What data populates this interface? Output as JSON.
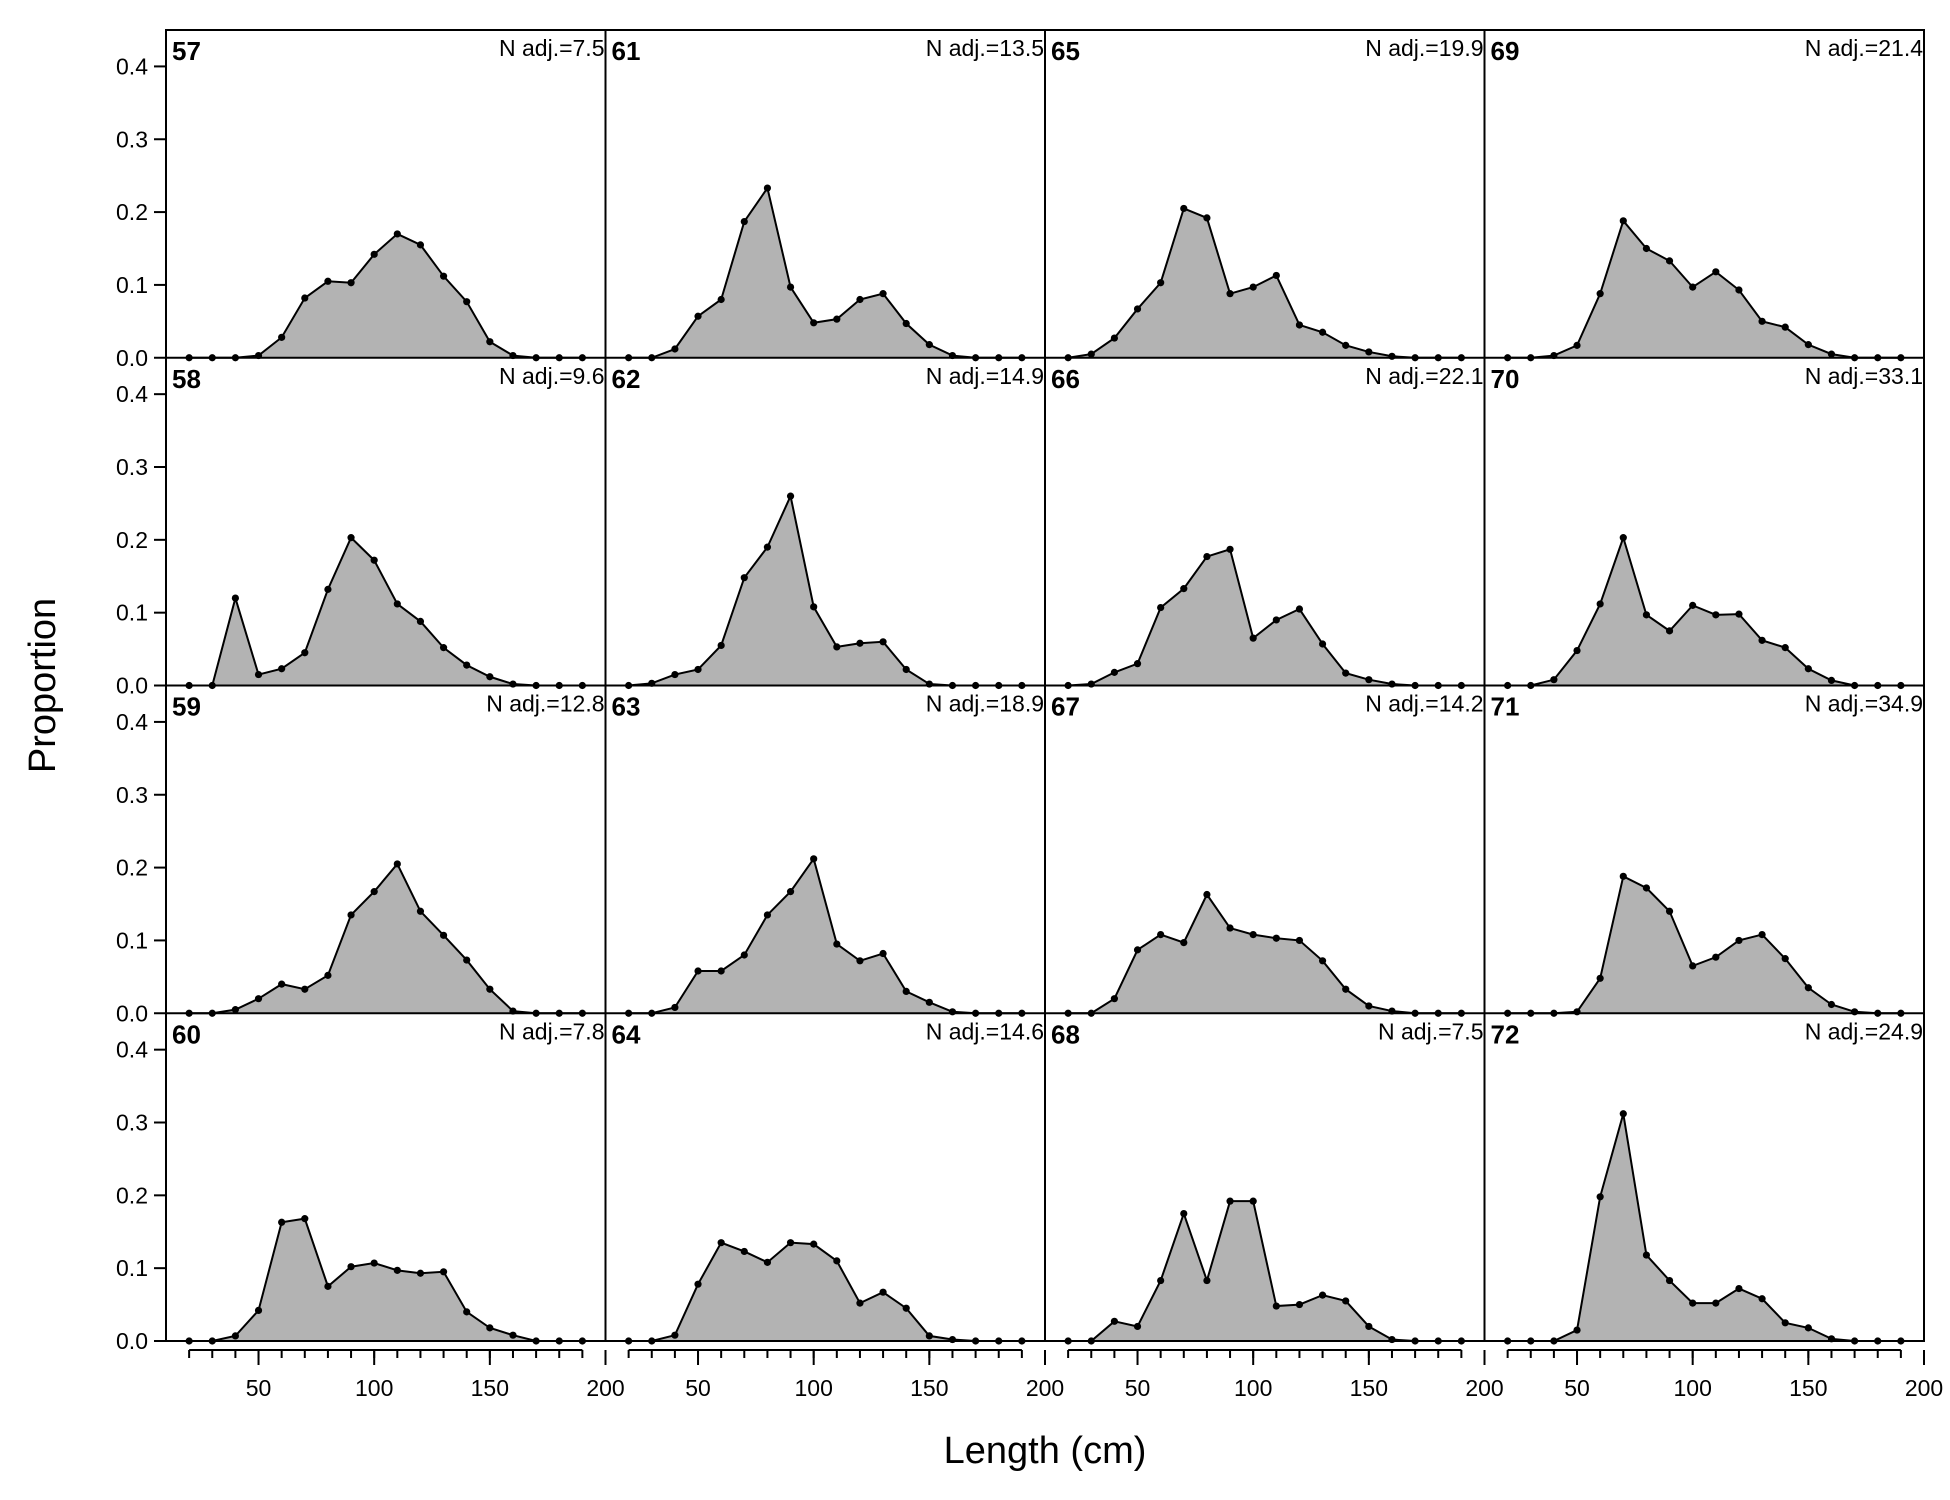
{
  "chart_data": {
    "type": "area",
    "xlabel": "Length (cm)",
    "ylabel": "Proportion",
    "xlim": [
      10,
      200
    ],
    "ylim": [
      0,
      0.45
    ],
    "x_ticks": [
      "50",
      "100",
      "150",
      "200"
    ],
    "y_ticks": [
      "0.0",
      "0.1",
      "0.2",
      "0.3",
      "0.4"
    ],
    "x": [
      20,
      30,
      40,
      50,
      60,
      70,
      80,
      90,
      100,
      110,
      120,
      130,
      140,
      150,
      160,
      170,
      180,
      190
    ],
    "panels": [
      {
        "title": "57",
        "label": "N adj.=7.5",
        "values": [
          0,
          0,
          0,
          0.003,
          0.028,
          0.082,
          0.105,
          0.103,
          0.142,
          0.17,
          0.155,
          0.112,
          0.077,
          0.022,
          0.003,
          0,
          0,
          0
        ]
      },
      {
        "title": "61",
        "label": "N adj.=13.5",
        "values": [
          0,
          0,
          0.012,
          0.057,
          0.08,
          0.187,
          0.233,
          0.097,
          0.048,
          0.053,
          0.08,
          0.088,
          0.047,
          0.018,
          0.003,
          0,
          0,
          0
        ]
      },
      {
        "title": "65",
        "label": "N adj.=19.9",
        "values": [
          0,
          0.005,
          0.027,
          0.067,
          0.103,
          0.205,
          0.192,
          0.088,
          0.097,
          0.113,
          0.045,
          0.035,
          0.017,
          0.008,
          0.002,
          0,
          0,
          0
        ]
      },
      {
        "title": "69",
        "label": "N adj.=21.4",
        "values": [
          0,
          0,
          0.003,
          0.017,
          0.088,
          0.188,
          0.15,
          0.133,
          0.097,
          0.118,
          0.093,
          0.05,
          0.042,
          0.018,
          0.005,
          0,
          0,
          0
        ]
      },
      {
        "title": "58",
        "label": "N adj.=9.6",
        "values": [
          0,
          0,
          0.12,
          0.015,
          0.023,
          0.045,
          0.132,
          0.203,
          0.172,
          0.112,
          0.088,
          0.052,
          0.028,
          0.012,
          0.002,
          0,
          0,
          0
        ]
      },
      {
        "title": "62",
        "label": "N adj.=14.9",
        "values": [
          0,
          0.003,
          0.015,
          0.022,
          0.055,
          0.148,
          0.19,
          0.26,
          0.108,
          0.053,
          0.058,
          0.06,
          0.022,
          0.002,
          0,
          0,
          0,
          0
        ]
      },
      {
        "title": "66",
        "label": "N adj.=22.1",
        "values": [
          0,
          0.002,
          0.018,
          0.03,
          0.107,
          0.133,
          0.177,
          0.187,
          0.065,
          0.09,
          0.105,
          0.057,
          0.017,
          0.008,
          0.002,
          0,
          0,
          0
        ]
      },
      {
        "title": "70",
        "label": "N adj.=33.1",
        "values": [
          0,
          0,
          0.008,
          0.048,
          0.112,
          0.203,
          0.097,
          0.075,
          0.11,
          0.097,
          0.098,
          0.062,
          0.052,
          0.023,
          0.007,
          0,
          0,
          0
        ]
      },
      {
        "title": "59",
        "label": "N adj.=12.8",
        "values": [
          0,
          0,
          0.005,
          0.02,
          0.04,
          0.033,
          0.052,
          0.135,
          0.167,
          0.205,
          0.14,
          0.107,
          0.073,
          0.033,
          0.003,
          0,
          0,
          0
        ]
      },
      {
        "title": "63",
        "label": "N adj.=18.9",
        "values": [
          0,
          0,
          0.008,
          0.058,
          0.058,
          0.08,
          0.135,
          0.167,
          0.212,
          0.095,
          0.072,
          0.082,
          0.03,
          0.015,
          0.002,
          0,
          0,
          0
        ]
      },
      {
        "title": "67",
        "label": "N adj.=14.2",
        "values": [
          0,
          0,
          0.02,
          0.087,
          0.108,
          0.097,
          0.163,
          0.117,
          0.108,
          0.103,
          0.1,
          0.072,
          0.033,
          0.01,
          0.003,
          0,
          0,
          0
        ]
      },
      {
        "title": "71",
        "label": "N adj.=34.9",
        "values": [
          0,
          0,
          0,
          0.002,
          0.048,
          0.188,
          0.172,
          0.14,
          0.065,
          0.077,
          0.1,
          0.108,
          0.075,
          0.035,
          0.012,
          0.002,
          0,
          0
        ]
      },
      {
        "title": "60",
        "label": "N adj.=7.8",
        "values": [
          0,
          0,
          0.007,
          0.042,
          0.163,
          0.168,
          0.075,
          0.102,
          0.107,
          0.097,
          0.093,
          0.095,
          0.04,
          0.018,
          0.008,
          0,
          0,
          0
        ]
      },
      {
        "title": "64",
        "label": "N adj.=14.6",
        "values": [
          0,
          0,
          0.008,
          0.078,
          0.135,
          0.123,
          0.108,
          0.135,
          0.133,
          0.11,
          0.052,
          0.067,
          0.045,
          0.007,
          0.002,
          0,
          0,
          0
        ]
      },
      {
        "title": "68",
        "label": "N adj.=7.5",
        "values": [
          0,
          0,
          0.027,
          0.02,
          0.083,
          0.175,
          0.083,
          0.192,
          0.192,
          0.048,
          0.05,
          0.063,
          0.055,
          0.02,
          0.002,
          0,
          0,
          0
        ]
      },
      {
        "title": "72",
        "label": "N adj.=24.9",
        "values": [
          0,
          0,
          0,
          0.015,
          0.198,
          0.312,
          0.118,
          0.083,
          0.052,
          0.052,
          0.072,
          0.058,
          0.025,
          0.018,
          0.003,
          0,
          0,
          0
        ]
      }
    ],
    "grid": false,
    "legend": "none",
    "colors": {
      "fill": "#b3b3b3",
      "line": "#000000"
    }
  }
}
